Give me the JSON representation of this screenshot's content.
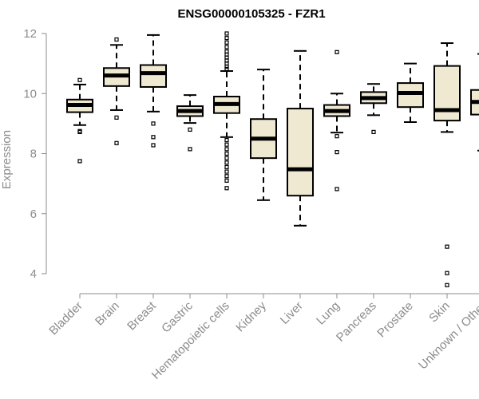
{
  "chart_data": {
    "type": "boxplot",
    "title": "ENSG00000105325 - FZR1",
    "ylabel": "Expression",
    "xlabel": "",
    "ylim": [
      3.4,
      12.3
    ],
    "yticks": [
      4,
      6,
      8,
      10,
      12
    ],
    "box_fill": "#efe9d2",
    "box_stroke": "#000000",
    "median_color": "#000000",
    "axis_color": "#8c8c8c",
    "categories": [
      "Bladder",
      "Brain",
      "Breast",
      "Gastric",
      "Hematopoietic cells",
      "Kidney",
      "Liver",
      "Lung",
      "Pancreas",
      "Prostate",
      "Skin",
      "Unknown / Other"
    ],
    "boxes": [
      {
        "category": "Bladder",
        "whisker_low": 8.95,
        "q1": 9.38,
        "median": 9.62,
        "q3": 9.8,
        "whisker_high": 10.3,
        "outliers": [
          10.45,
          8.75,
          8.72,
          7.75
        ]
      },
      {
        "category": "Brain",
        "whisker_low": 9.45,
        "q1": 10.25,
        "median": 10.6,
        "q3": 10.85,
        "whisker_high": 11.62,
        "outliers": [
          11.8,
          9.2,
          8.35
        ]
      },
      {
        "category": "Breast",
        "whisker_low": 9.4,
        "q1": 10.22,
        "median": 10.68,
        "q3": 10.95,
        "whisker_high": 11.95,
        "outliers": [
          9.0,
          8.55,
          8.28
        ]
      },
      {
        "category": "Gastric",
        "whisker_low": 9.02,
        "q1": 9.25,
        "median": 9.42,
        "q3": 9.58,
        "whisker_high": 9.95,
        "outliers": [
          8.8,
          8.15
        ]
      },
      {
        "category": "Hematopoietic cells",
        "whisker_low": 8.55,
        "q1": 9.35,
        "median": 9.65,
        "q3": 9.9,
        "whisker_high": 10.75,
        "outliers": [
          12.0,
          11.85,
          11.7,
          11.55,
          11.4,
          11.3,
          11.2,
          11.1,
          11.0,
          10.9,
          10.82,
          8.45,
          8.3,
          8.15,
          8.0,
          7.85,
          7.7,
          7.55,
          7.4,
          7.25,
          7.1,
          6.85
        ]
      },
      {
        "category": "Kidney",
        "whisker_low": 6.45,
        "q1": 7.85,
        "median": 8.5,
        "q3": 9.15,
        "whisker_high": 10.8,
        "outliers": []
      },
      {
        "category": "Liver",
        "whisker_low": 5.6,
        "q1": 6.6,
        "median": 7.48,
        "q3": 9.5,
        "whisker_high": 11.42,
        "outliers": []
      },
      {
        "category": "Lung",
        "whisker_low": 8.7,
        "q1": 9.25,
        "median": 9.42,
        "q3": 9.62,
        "whisker_high": 10.0,
        "outliers": [
          11.38,
          8.58,
          8.05,
          6.82
        ]
      },
      {
        "category": "Pancreas",
        "whisker_low": 9.28,
        "q1": 9.68,
        "median": 9.85,
        "q3": 10.05,
        "whisker_high": 10.32,
        "outliers": [
          8.72
        ]
      },
      {
        "category": "Prostate",
        "whisker_low": 9.05,
        "q1": 9.55,
        "median": 10.02,
        "q3": 10.35,
        "whisker_high": 11.0,
        "outliers": []
      },
      {
        "category": "Skin",
        "whisker_low": 8.72,
        "q1": 9.1,
        "median": 9.45,
        "q3": 10.92,
        "whisker_high": 11.68,
        "outliers": [
          4.9,
          4.02,
          3.62
        ]
      },
      {
        "category": "Unknown / Other",
        "whisker_low": 8.1,
        "q1": 9.3,
        "median": 9.72,
        "q3": 10.12,
        "whisker_high": 11.32,
        "outliers": [
          11.9,
          11.45,
          7.62,
          7.58,
          6.2
        ]
      }
    ]
  }
}
